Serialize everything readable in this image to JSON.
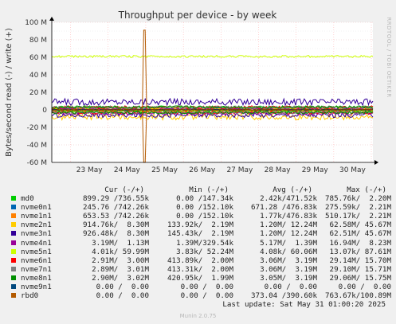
{
  "chart_data": {
    "type": "line",
    "title": "Throughput per device - by week",
    "ylabel": "Bytes/second read (-) / write (+)",
    "ylim": [
      -60000000,
      100000000
    ],
    "yticks": [
      {
        "value": 100000000,
        "label": "100 M"
      },
      {
        "value": 80000000,
        "label": "80 M"
      },
      {
        "value": 60000000,
        "label": "60 M"
      },
      {
        "value": 40000000,
        "label": "40 M"
      },
      {
        "value": 20000000,
        "label": "20 M"
      },
      {
        "value": 0,
        "label": "0"
      },
      {
        "value": -20000000,
        "label": "-20 M"
      },
      {
        "value": -40000000,
        "label": "-40 M"
      },
      {
        "value": -60000000,
        "label": "-60 M"
      }
    ],
    "x_range": [
      "2025-05-22T12:00",
      "2025-05-31T01:00"
    ],
    "xticks": [
      "23 May",
      "24 May",
      "25 May",
      "26 May",
      "27 May",
      "28 May",
      "29 May",
      "30 May"
    ],
    "grid": true,
    "side_label": "RRDTOOL / TOBI OETIKER",
    "series": [
      {
        "name": "md0",
        "color": "#00CC00",
        "write_level": 3000000,
        "read_level": -2000000
      },
      {
        "name": "nvme0n1",
        "color": "#0066B3",
        "write_level": 1500000,
        "read_level": -1000000
      },
      {
        "name": "nvme1n1",
        "color": "#FF8000",
        "write_level": 1000000,
        "read_level": -1000000
      },
      {
        "name": "nvme2n1",
        "color": "#FFCC00",
        "write_level": 1200000,
        "read_level": -8000000
      },
      {
        "name": "nvme3n1",
        "color": "#330099",
        "write_level": 9000000,
        "read_level": -6000000
      },
      {
        "name": "nvme4n1",
        "color": "#990099",
        "write_level": 1000000,
        "read_level": -4000000
      },
      {
        "name": "nvme5n1",
        "color": "#CCFF00",
        "write_level": 61000000,
        "read_level": -1000000
      },
      {
        "name": "nvme6n1",
        "color": "#FF0000",
        "write_level": 3000000,
        "read_level": -3000000
      },
      {
        "name": "nvme7n1",
        "color": "#808080",
        "write_level": 3000000,
        "read_level": -3000000
      },
      {
        "name": "nvme8n1",
        "color": "#008F00",
        "write_level": 3000000,
        "read_level": -3000000
      },
      {
        "name": "nvme9n1",
        "color": "#00487D",
        "write_level": 0,
        "read_level": 0
      },
      {
        "name": "rbd0",
        "color": "#B35A00",
        "write_level": 0,
        "read_level": 0,
        "spike": {
          "at": "2025-05-24T23:00",
          "write": 91000000,
          "read": -60000000
        }
      }
    ]
  },
  "legend": {
    "headers": [
      "Cur (-/+)",
      "Min (-/+)",
      "Avg (-/+)",
      "Max (-/+)"
    ],
    "rows": [
      {
        "name": "md0",
        "cur": "899.29 /736.55k",
        "min": "0.00 /147.34k",
        "avg": "2.42k/471.52k",
        "max": "785.76k/  2.20M"
      },
      {
        "name": "nvme0n1",
        "cur": "245.76 /742.26k",
        "min": "0.00 /152.10k",
        "avg": "671.28 /476.83k",
        "max": "275.59k/  2.21M"
      },
      {
        "name": "nvme1n1",
        "cur": "653.53 /742.26k",
        "min": "0.00 /152.10k",
        "avg": "1.77k/476.83k",
        "max": "510.17k/  2.21M"
      },
      {
        "name": "nvme2n1",
        "cur": "914.76k/  8.30M",
        "min": "133.92k/  2.19M",
        "avg": "1.20M/ 12.24M",
        "max": "62.58M/ 45.67M"
      },
      {
        "name": "nvme3n1",
        "cur": "926.48k/  8.30M",
        "min": "145.43k/  2.19M",
        "avg": "1.20M/ 12.24M",
        "max": "62.51M/ 45.67M"
      },
      {
        "name": "nvme4n1",
        "cur": "3.19M/  1.13M",
        "min": "1.39M/329.54k",
        "avg": "5.17M/  1.39M",
        "max": "16.94M/  8.23M"
      },
      {
        "name": "nvme5n1",
        "cur": "4.01k/ 59.99M",
        "min": "3.83k/ 52.24M",
        "avg": "4.08k/ 60.06M",
        "max": "13.07k/ 87.61M"
      },
      {
        "name": "nvme6n1",
        "cur": "2.91M/  3.00M",
        "min": "413.89k/  2.00M",
        "avg": "3.06M/  3.19M",
        "max": "29.14M/ 15.70M"
      },
      {
        "name": "nvme7n1",
        "cur": "2.89M/  3.01M",
        "min": "413.31k/  2.00M",
        "avg": "3.06M/  3.19M",
        "max": "29.10M/ 15.71M"
      },
      {
        "name": "nvme8n1",
        "cur": "2.90M/  3.02M",
        "min": "420.95k/  1.99M",
        "avg": "3.05M/  3.19M",
        "max": "29.06M/ 15.75M"
      },
      {
        "name": "nvme9n1",
        "cur": "0.00 /  0.00",
        "min": "0.00 /  0.00",
        "avg": "0.00 /  0.00",
        "max": "0.00 /  0.00"
      },
      {
        "name": "rbd0",
        "cur": "0.00 /  0.00",
        "min": "0.00 /  0.00",
        "avg": "373.04 /390.60k",
        "max": "763.67k/100.89M"
      }
    ]
  },
  "last_update": "Last update: Sat May 31 01:00:20 2025",
  "footer": "Munin 2.0.75"
}
